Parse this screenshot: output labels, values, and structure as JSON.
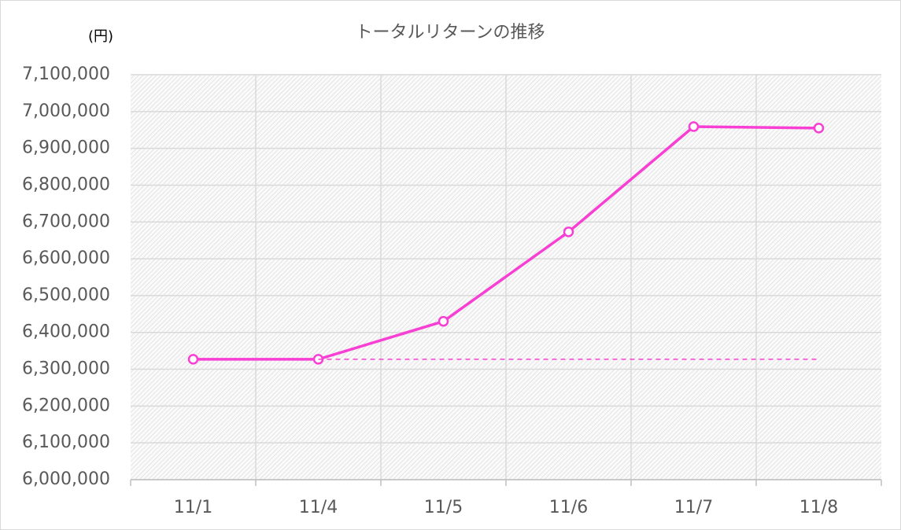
{
  "chart_data": {
    "type": "line",
    "title": "トータルリターンの推移",
    "y_unit_label": "(円)",
    "categories": [
      "11/1",
      "11/4",
      "11/5",
      "11/6",
      "11/7",
      "11/8"
    ],
    "series": [
      {
        "color": "#f73fd4",
        "values": [
          6327000,
          6327000,
          6430000,
          6673000,
          6959000,
          6955000
        ],
        "markers": true,
        "dashed": false
      },
      {
        "color": "#f73fd4",
        "values": [
          null,
          6327000,
          6327000,
          6327000,
          6327000,
          6327000
        ],
        "markers": false,
        "dashed": true
      }
    ],
    "ylim": [
      6000000,
      7100000
    ],
    "yticks": [
      {
        "value": 6000000,
        "label": "6,000,000"
      },
      {
        "value": 6100000,
        "label": "6,100,000"
      },
      {
        "value": 6200000,
        "label": "6,200,000"
      },
      {
        "value": 6300000,
        "label": "6,300,000"
      },
      {
        "value": 6400000,
        "label": "6,400,000"
      },
      {
        "value": 6500000,
        "label": "6,500,000"
      },
      {
        "value": 6600000,
        "label": "6,600,000"
      },
      {
        "value": 6700000,
        "label": "6,700,000"
      },
      {
        "value": 6800000,
        "label": "6,800,000"
      },
      {
        "value": 6900000,
        "label": "6,900,000"
      },
      {
        "value": 7000000,
        "label": "7,000,000"
      },
      {
        "value": 7100000,
        "label": "7,100,000"
      }
    ],
    "grid": true
  }
}
